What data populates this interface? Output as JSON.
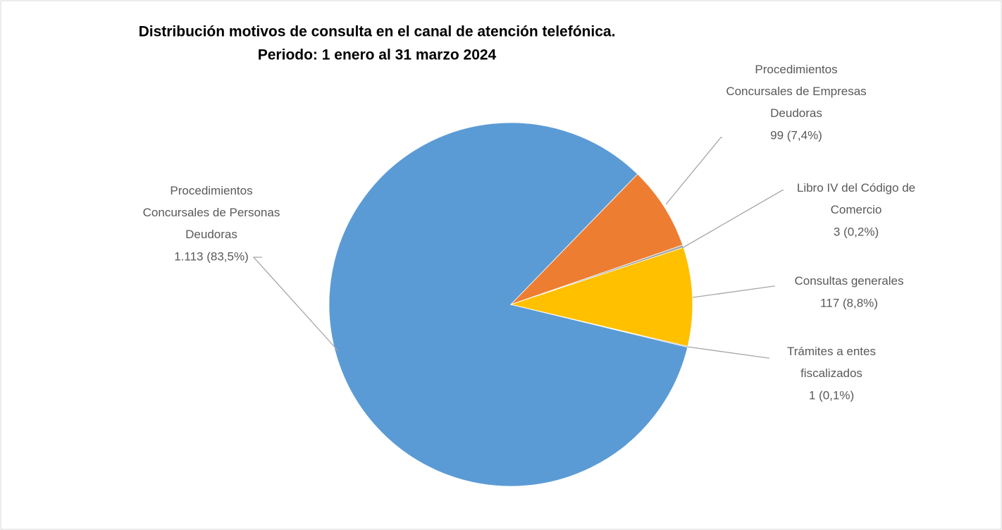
{
  "chart_data": {
    "type": "pie",
    "title": "Distribución motivos de consulta en el canal de atención telefónica.",
    "subtitle": "Periodo: 1 enero al 31 marzo 2024",
    "categories": [
      "Procedimientos Concursales de Personas Deudoras",
      "Procedimientos Concursales de Empresas Deudoras",
      "Libro IV del Código de Comercio",
      "Consultas generales",
      "Trámites a entes fiscalizados"
    ],
    "values": [
      1113,
      99,
      3,
      117,
      1
    ],
    "value_labels": [
      "1.113 (83,5%)",
      "99 (7,4%)",
      "3 (0,2%)",
      "117 (8,8%)",
      "1 (0,1%)"
    ],
    "colors": [
      "#5b9bd5",
      "#ed7d31",
      "#a5a5a5",
      "#ffc000",
      "#4472c4"
    ]
  }
}
